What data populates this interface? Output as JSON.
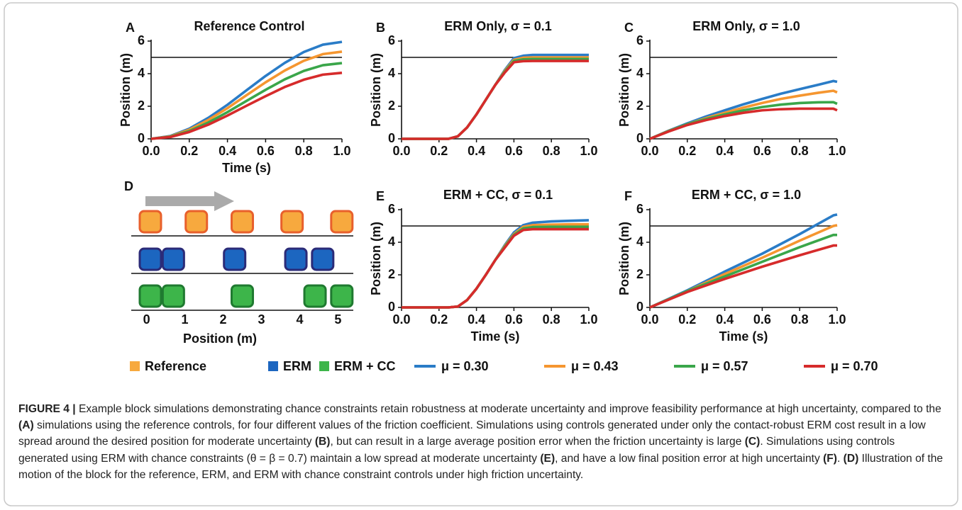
{
  "chart_data": [
    {
      "type": "line",
      "panel": "A",
      "title": "Reference Control",
      "xlabel": "Time (s)",
      "ylabel": "Position (m)",
      "x": [
        0,
        0.1,
        0.2,
        0.3,
        0.4,
        0.5,
        0.6,
        0.7,
        0.8,
        0.9,
        1.0
      ],
      "series": [
        {
          "color": "#2a7cc7",
          "values": [
            0,
            0.17,
            0.62,
            1.29,
            2.09,
            2.98,
            3.86,
            4.66,
            5.33,
            5.78,
            5.95
          ]
        },
        {
          "color": "#f59630",
          "values": [
            0,
            0.15,
            0.56,
            1.16,
            1.88,
            2.68,
            3.47,
            4.19,
            4.79,
            5.2,
            5.35
          ]
        },
        {
          "color": "#3aa64a",
          "values": [
            0,
            0.13,
            0.48,
            1.0,
            1.64,
            2.33,
            3.01,
            3.65,
            4.17,
            4.52,
            4.65
          ]
        },
        {
          "color": "#d62b2b",
          "values": [
            0,
            0.11,
            0.42,
            0.87,
            1.43,
            2.03,
            2.62,
            3.18,
            3.63,
            3.94,
            4.05
          ]
        }
      ],
      "xlim": [
        0,
        1
      ],
      "ylim": [
        0,
        6
      ],
      "xticks": [
        {
          "value": 0,
          "label": "0.0"
        },
        0.2,
        0.4,
        0.6,
        0.8,
        {
          "value": 1,
          "label": "1.0"
        }
      ],
      "yticks": [
        0,
        2,
        4,
        6
      ],
      "hline": 5
    },
    {
      "type": "line",
      "panel": "B",
      "title": "ERM Only, σ = 0.1",
      "ylabel": "Position (m)",
      "x": [
        0,
        0.1,
        0.2,
        0.25,
        0.3,
        0.35,
        0.4,
        0.45,
        0.5,
        0.55,
        0.6,
        0.65,
        0.7,
        0.8,
        0.9,
        1.0
      ],
      "series": [
        {
          "color": "#2a7cc7",
          "values": [
            0,
            0,
            0,
            0,
            0.15,
            0.7,
            1.5,
            2.4,
            3.3,
            4.2,
            4.95,
            5.1,
            5.15,
            5.15,
            5.15,
            5.15
          ]
        },
        {
          "color": "#f59630",
          "values": [
            0,
            0,
            0,
            0,
            0.15,
            0.7,
            1.5,
            2.4,
            3.3,
            4.15,
            4.85,
            4.98,
            5.0,
            5.0,
            5.0,
            5.0
          ]
        },
        {
          "color": "#3aa64a",
          "values": [
            0,
            0,
            0,
            0,
            0.15,
            0.7,
            1.5,
            2.4,
            3.3,
            4.1,
            4.78,
            4.88,
            4.9,
            4.9,
            4.9,
            4.9
          ]
        },
        {
          "color": "#d62b2b",
          "values": [
            0,
            0,
            0,
            0,
            0.15,
            0.7,
            1.5,
            2.4,
            3.3,
            4.05,
            4.7,
            4.77,
            4.78,
            4.78,
            4.78,
            4.78
          ]
        }
      ],
      "xlim": [
        0,
        1
      ],
      "ylim": [
        0,
        6
      ],
      "xticks": [
        {
          "value": 0,
          "label": "0.0"
        },
        0.2,
        0.4,
        0.6,
        0.8,
        {
          "value": 1,
          "label": "1.0"
        }
      ],
      "yticks": [
        0,
        2,
        4,
        6
      ],
      "hline": 5
    },
    {
      "type": "line",
      "panel": "C",
      "title": "ERM Only, σ = 1.0",
      "ylabel": "Position (m)",
      "x": [
        0,
        0.1,
        0.2,
        0.3,
        0.4,
        0.5,
        0.6,
        0.7,
        0.8,
        0.9,
        0.98,
        1.0
      ],
      "series": [
        {
          "color": "#2a7cc7",
          "values": [
            0,
            0.5,
            0.95,
            1.37,
            1.75,
            2.12,
            2.45,
            2.77,
            3.05,
            3.32,
            3.55,
            3.5
          ]
        },
        {
          "color": "#f59630",
          "values": [
            0,
            0.48,
            0.9,
            1.27,
            1.6,
            1.92,
            2.2,
            2.45,
            2.65,
            2.83,
            2.95,
            2.85
          ]
        },
        {
          "color": "#3aa64a",
          "values": [
            0,
            0.47,
            0.9,
            1.22,
            1.5,
            1.75,
            1.95,
            2.1,
            2.2,
            2.24,
            2.25,
            2.15
          ]
        },
        {
          "color": "#d62b2b",
          "values": [
            0,
            0.45,
            0.85,
            1.15,
            1.4,
            1.6,
            1.75,
            1.82,
            1.85,
            1.85,
            1.85,
            1.75
          ]
        }
      ],
      "xlim": [
        0,
        1
      ],
      "ylim": [
        0,
        6
      ],
      "xticks": [
        {
          "value": 0,
          "label": "0.0"
        },
        0.2,
        0.4,
        0.6,
        0.8,
        {
          "value": 1,
          "label": "1.0"
        }
      ],
      "yticks": [
        0,
        2,
        4,
        6
      ],
      "hline": 5
    },
    {
      "type": "line",
      "panel": "E",
      "title": "ERM + CC, σ = 0.1",
      "xlabel": "Time (s)",
      "ylabel": "Position (m)",
      "x": [
        0,
        0.1,
        0.2,
        0.25,
        0.3,
        0.35,
        0.4,
        0.45,
        0.5,
        0.55,
        0.6,
        0.65,
        0.7,
        0.8,
        0.9,
        1.0
      ],
      "series": [
        {
          "color": "#2a7cc7",
          "values": [
            0,
            0,
            0,
            0,
            0.05,
            0.45,
            1.15,
            2.0,
            2.9,
            3.8,
            4.6,
            5.05,
            5.2,
            5.28,
            5.32,
            5.35
          ]
        },
        {
          "color": "#f59630",
          "values": [
            0,
            0,
            0,
            0,
            0.05,
            0.45,
            1.15,
            2.0,
            2.9,
            3.75,
            4.5,
            4.95,
            5.05,
            5.08,
            5.1,
            5.1
          ]
        },
        {
          "color": "#3aa64a",
          "values": [
            0,
            0,
            0,
            0,
            0.05,
            0.45,
            1.15,
            2.0,
            2.9,
            3.7,
            4.45,
            4.85,
            4.93,
            4.95,
            4.95,
            4.95
          ]
        },
        {
          "color": "#d62b2b",
          "values": [
            0,
            0,
            0,
            0,
            0.05,
            0.45,
            1.15,
            2.0,
            2.9,
            3.65,
            4.4,
            4.75,
            4.8,
            4.8,
            4.8,
            4.8
          ]
        }
      ],
      "xlim": [
        0,
        1
      ],
      "ylim": [
        0,
        6
      ],
      "xticks": [
        {
          "value": 0,
          "label": "0.0"
        },
        0.2,
        0.4,
        0.6,
        0.8,
        {
          "value": 1,
          "label": "1.0"
        }
      ],
      "yticks": [
        0,
        2,
        4,
        6
      ],
      "hline": 5
    },
    {
      "type": "line",
      "panel": "F",
      "title": "ERM + CC, σ = 1.0",
      "xlabel": "Time (s)",
      "ylabel": "Position (m)",
      "x": [
        0,
        0.2,
        0.4,
        0.6,
        0.8,
        0.98,
        1.0
      ],
      "series": [
        {
          "color": "#2a7cc7",
          "values": [
            0,
            1.05,
            2.2,
            3.3,
            4.5,
            5.65,
            5.7
          ]
        },
        {
          "color": "#f59630",
          "values": [
            0,
            1.0,
            2.05,
            3.05,
            4.1,
            5.0,
            5.05
          ]
        },
        {
          "color": "#3aa64a",
          "values": [
            0,
            1.0,
            1.9,
            2.8,
            3.7,
            4.45,
            4.45
          ]
        },
        {
          "color": "#d62b2b",
          "values": [
            0,
            0.95,
            1.75,
            2.5,
            3.2,
            3.8,
            3.8
          ]
        }
      ],
      "xlim": [
        0,
        1
      ],
      "ylim": [
        0,
        6
      ],
      "xticks": [
        {
          "value": 0,
          "label": "0.0"
        },
        0.2,
        0.4,
        0.6,
        0.8,
        {
          "value": 1,
          "label": "1.0"
        }
      ],
      "yticks": [
        0,
        2,
        4,
        6
      ],
      "hline": 5
    }
  ],
  "series_legend": [
    {
      "name": "μ = 0.30",
      "color": "#2a7cc7"
    },
    {
      "name": "μ = 0.43",
      "color": "#f59630"
    },
    {
      "name": "μ = 0.57",
      "color": "#3aa64a"
    },
    {
      "name": "μ = 0.70",
      "color": "#d62b2b"
    }
  ],
  "diagram": {
    "panel": "D",
    "xlabel": "Position (m)",
    "xlim": [
      -0.4,
      5.4
    ],
    "xticks": [
      0,
      1,
      2,
      3,
      4,
      5
    ],
    "legend": [
      {
        "name": "Reference",
        "fill": "#f7a93e",
        "stroke": "#e8602c"
      },
      {
        "name": "ERM",
        "fill": "#1c66c0",
        "stroke": "#2b2b78"
      },
      {
        "name": "ERM + CC",
        "fill": "#3db54a",
        "stroke": "#1f7a30"
      }
    ],
    "rows": [
      [
        0.1,
        1.3,
        2.5,
        3.8,
        5.1
      ],
      [
        0.1,
        0.7,
        2.3,
        3.9,
        4.6
      ],
      [
        0.1,
        0.7,
        2.5,
        4.4,
        5.1
      ]
    ]
  },
  "caption": {
    "label": "FIGURE 4 |",
    "parts": [
      "Example block simulations demonstrating chance constraints retain robustness at moderate uncertainty and improve feasibility performance at high uncertainty, compared to the ",
      "(A)",
      " simulations using the reference controls, for four different values of the friction coefficient. Simulations using controls generated under only the contact-robust ERM cost result in a low spread around the desired position for moderate uncertainty ",
      "(B)",
      ", but can result in a large average position error when the friction uncertainty is large ",
      "(C)",
      ". Simulations using controls generated using ERM with chance constraints (θ = β = 0.7) maintain a low spread at moderate uncertainty ",
      "(E)",
      ", and have a low final position error at high uncertainty ",
      "(F)",
      ". ",
      "(D)",
      " Illustration of the motion of the block for the reference, ERM, and ERM with chance constraint controls under high friction uncertainty."
    ]
  }
}
